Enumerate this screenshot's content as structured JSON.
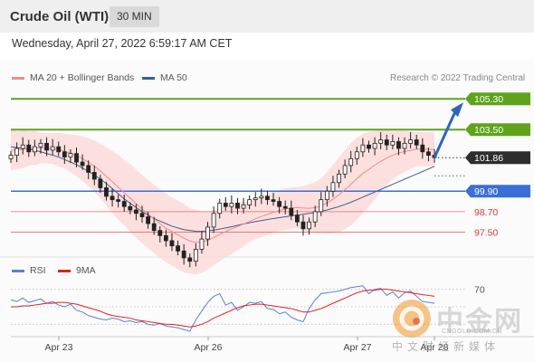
{
  "header": {
    "title": "Crude Oil (WTI)",
    "timeframe": "30 MIN"
  },
  "date": "Wednesday, April 27, 2022 6:59:17 AM CET",
  "legend": {
    "bb": "MA 20 + Bollinger Bands",
    "ma50": "MA 50",
    "rsi": "RSI",
    "ma9": "9MA",
    "credit": "Research © 2022 Trading Central"
  },
  "colors": {
    "green": "#5fa31d",
    "blue": "#3a6fd8",
    "red": "#e36b6b",
    "dark": "#2d2d2d",
    "band": "#fcd6d6",
    "ma50": "#3e5f8f",
    "rsi": "#5a7fd6",
    "ma9": "#e02020"
  },
  "levels": [
    {
      "label": "105.30",
      "value": 105.3,
      "type": "resistance"
    },
    {
      "label": "103.50",
      "value": 103.5,
      "type": "resistance"
    },
    {
      "label": "101.86",
      "value": 101.86,
      "type": "last"
    },
    {
      "label": "99.90",
      "value": 99.9,
      "type": "pivot"
    },
    {
      "label": "98.70",
      "value": 98.7,
      "type": "support"
    },
    {
      "label": "97.50",
      "value": 97.5,
      "type": "support"
    }
  ],
  "rsi_level": "70",
  "xaxis": [
    "Apr 23",
    "Apr 26",
    "Apr 27",
    "Apr 28"
  ],
  "watermark": {
    "brand": "中金网",
    "sub": "中文财经新媒体",
    "url": "CNGOLD.COM.CN"
  },
  "chart_data": {
    "type": "candlestick",
    "title": "Crude Oil (WTI)",
    "timeframe": "30 MIN",
    "y_range": [
      95.2,
      106.0
    ],
    "x_ticks": [
      "Apr 23",
      "Apr 26",
      "Apr 27",
      "Apr 28"
    ],
    "close": [
      102.0,
      102.4,
      102.6,
      102.2,
      102.5,
      102.7,
      102.3,
      102.5,
      102.2,
      101.9,
      102.1,
      101.6,
      101.4,
      101.0,
      100.6,
      100.1,
      99.6,
      99.4,
      99.3,
      99.0,
      98.8,
      98.6,
      98.4,
      98.0,
      97.6,
      97.3,
      97.0,
      96.7,
      96.4,
      96.0,
      95.8,
      96.5,
      97.1,
      97.8,
      98.6,
      99.2,
      99.0,
      99.2,
      98.9,
      99.1,
      99.4,
      99.5,
      99.6,
      99.4,
      99.3,
      99.0,
      98.9,
      98.5,
      98.1,
      97.7,
      98.1,
      98.7,
      99.4,
      99.9,
      100.4,
      100.9,
      101.4,
      101.8,
      102.2,
      102.6,
      102.4,
      102.7,
      102.9,
      102.6,
      102.8,
      102.4,
      102.7,
      102.9,
      102.6,
      102.2,
      102.0,
      101.86
    ],
    "ma20": [
      102.3,
      102.3,
      102.35,
      102.4,
      102.42,
      102.43,
      102.41,
      102.39,
      102.33,
      102.24,
      102.12,
      101.98,
      101.8,
      101.59,
      101.36,
      101.08,
      100.77,
      100.45,
      100.13,
      99.81,
      99.49,
      99.17,
      98.86,
      98.56,
      98.28,
      98.0,
      97.74,
      97.54,
      97.34,
      97.15,
      96.99,
      96.91,
      96.93,
      97.02,
      97.18,
      97.38,
      97.53,
      97.7,
      97.84,
      97.97,
      98.13,
      98.28,
      98.42,
      98.54,
      98.66,
      98.76,
      98.85,
      98.91,
      98.94,
      98.91,
      98.9,
      98.93,
      99.04,
      99.21,
      99.43,
      99.69,
      99.99,
      100.3,
      100.62,
      100.94,
      101.17,
      101.42,
      101.64,
      101.84,
      102.0,
      102.13,
      102.22,
      102.29,
      102.36,
      102.36,
      102.35,
      102.34
    ],
    "ma50": [
      102.5,
      102.45,
      102.4,
      102.35,
      102.3,
      102.2,
      102.1,
      102.0,
      101.9,
      101.75,
      101.6,
      101.45,
      101.25,
      101.05,
      100.85,
      100.6,
      100.35,
      100.05,
      99.75,
      99.45,
      99.2,
      98.95,
      98.7,
      98.5,
      98.3,
      98.15,
      98.0,
      97.85,
      97.75,
      97.65,
      97.6,
      97.55,
      97.55,
      97.58,
      97.62,
      97.68,
      97.75,
      97.82,
      97.9,
      97.98,
      98.05,
      98.12,
      98.18,
      98.24,
      98.3,
      98.35,
      98.4,
      98.45,
      98.5,
      98.55,
      98.6,
      98.65,
      98.72,
      98.8,
      98.9,
      99.0,
      99.12,
      99.25,
      99.4,
      99.55,
      99.7,
      99.85,
      100.0,
      100.15,
      100.3,
      100.45,
      100.6,
      100.75,
      100.9,
      101.05,
      101.2,
      101.35
    ],
    "bollinger_width": [
      1.2,
      1.1,
      1.1,
      1.0,
      1.0,
      0.9,
      0.9,
      0.9,
      1.0,
      1.0,
      1.1,
      1.2,
      1.3,
      1.4,
      1.5,
      1.6,
      1.7,
      1.8,
      1.9,
      1.9,
      2.0,
      2.0,
      2.0,
      2.0,
      2.0,
      2.0,
      2.0,
      2.0,
      2.0,
      2.0,
      1.9,
      1.9,
      1.8,
      1.7,
      1.6,
      1.6,
      1.5,
      1.5,
      1.4,
      1.3,
      1.2,
      1.2,
      1.2,
      1.2,
      1.2,
      1.2,
      1.2,
      1.2,
      1.2,
      1.3,
      1.4,
      1.5,
      1.6,
      1.8,
      2.0,
      2.2,
      2.3,
      2.4,
      2.4,
      2.3,
      2.2,
      2.0,
      1.8,
      1.6,
      1.4,
      1.3,
      1.2,
      1.1,
      1.0,
      1.0,
      1.0,
      1.0
    ],
    "rsi": [
      58,
      56,
      60,
      55,
      57,
      59,
      54,
      56,
      52,
      50,
      53,
      46,
      44,
      40,
      38,
      36,
      35,
      37,
      36,
      33,
      34,
      32,
      33,
      30,
      29,
      31,
      28,
      27,
      26,
      24,
      22,
      35,
      45,
      55,
      62,
      65,
      52,
      55,
      46,
      50,
      55,
      54,
      56,
      48,
      47,
      42,
      44,
      38,
      35,
      33,
      48,
      58,
      65,
      66,
      67,
      68,
      70,
      72,
      73,
      74,
      65,
      70,
      71,
      63,
      67,
      60,
      66,
      68,
      62,
      56,
      55,
      54
    ],
    "rsi_ma9": [
      50,
      50,
      51,
      51,
      52,
      53,
      54,
      54,
      55,
      55,
      54,
      53,
      51,
      49,
      47,
      45,
      42,
      40,
      39,
      38,
      37,
      35,
      34,
      33,
      32,
      31,
      30,
      30,
      29,
      28,
      27,
      28,
      30,
      33,
      37,
      40,
      43,
      46,
      49,
      51,
      52,
      53,
      53,
      52,
      51,
      50,
      49,
      48,
      46,
      44,
      44,
      46,
      48,
      51,
      54,
      57,
      60,
      63,
      66,
      68,
      69,
      69,
      70,
      70,
      69,
      68,
      67,
      66,
      65,
      64,
      63,
      62
    ],
    "rsi_level": 70,
    "levels": [
      105.3,
      103.5,
      101.86,
      99.9,
      98.7,
      97.5
    ],
    "arrow": {
      "from": [
        101.86
      ],
      "to": 105.3
    }
  }
}
